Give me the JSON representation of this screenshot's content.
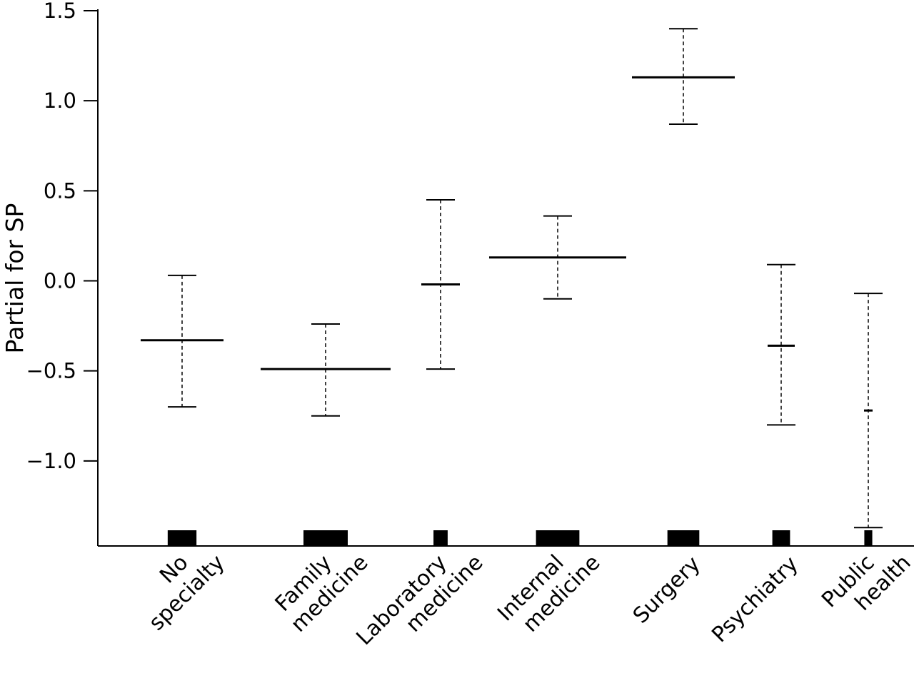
{
  "chart_data": {
    "type": "errorbar",
    "ylabel": "Partial for SP",
    "ylim": [
      -1.5,
      1.5
    ],
    "yticks": [
      {
        "value": 1.5,
        "label": "1.5"
      },
      {
        "value": 1.0,
        "label": "1.0"
      },
      {
        "value": 0.5,
        "label": "0.5"
      },
      {
        "value": 0.0,
        "label": "0.0"
      },
      {
        "value": -0.5,
        "label": "−0.5"
      },
      {
        "value": -1.0,
        "label": "−1.0"
      }
    ],
    "categories": [
      {
        "label_lines": [
          "No",
          "specialty"
        ],
        "estimate": -0.33,
        "lower": -0.7,
        "upper": 0.03,
        "rug_weight": 0.65
      },
      {
        "label_lines": [
          "Family",
          "medicine"
        ],
        "estimate": -0.49,
        "lower": -0.75,
        "upper": -0.24,
        "rug_weight": 1.0
      },
      {
        "label_lines": [
          "Laboratory",
          "medicine"
        ],
        "estimate": -0.02,
        "lower": -0.49,
        "upper": 0.45,
        "rug_weight": 0.32
      },
      {
        "label_lines": [
          "Internal",
          "medicine"
        ],
        "estimate": 0.13,
        "lower": -0.1,
        "upper": 0.36,
        "rug_weight": 0.98
      },
      {
        "label_lines": [
          "Surgery"
        ],
        "estimate": 1.13,
        "lower": 0.87,
        "upper": 1.4,
        "rug_weight": 0.72
      },
      {
        "label_lines": [
          "Psychiatry"
        ],
        "estimate": -0.36,
        "lower": -0.8,
        "upper": 0.09,
        "rug_weight": 0.4
      },
      {
        "label_lines": [
          "Public",
          "health"
        ],
        "estimate": -0.72,
        "lower": -1.37,
        "upper": -0.07,
        "rug_weight": 0.18
      }
    ]
  }
}
